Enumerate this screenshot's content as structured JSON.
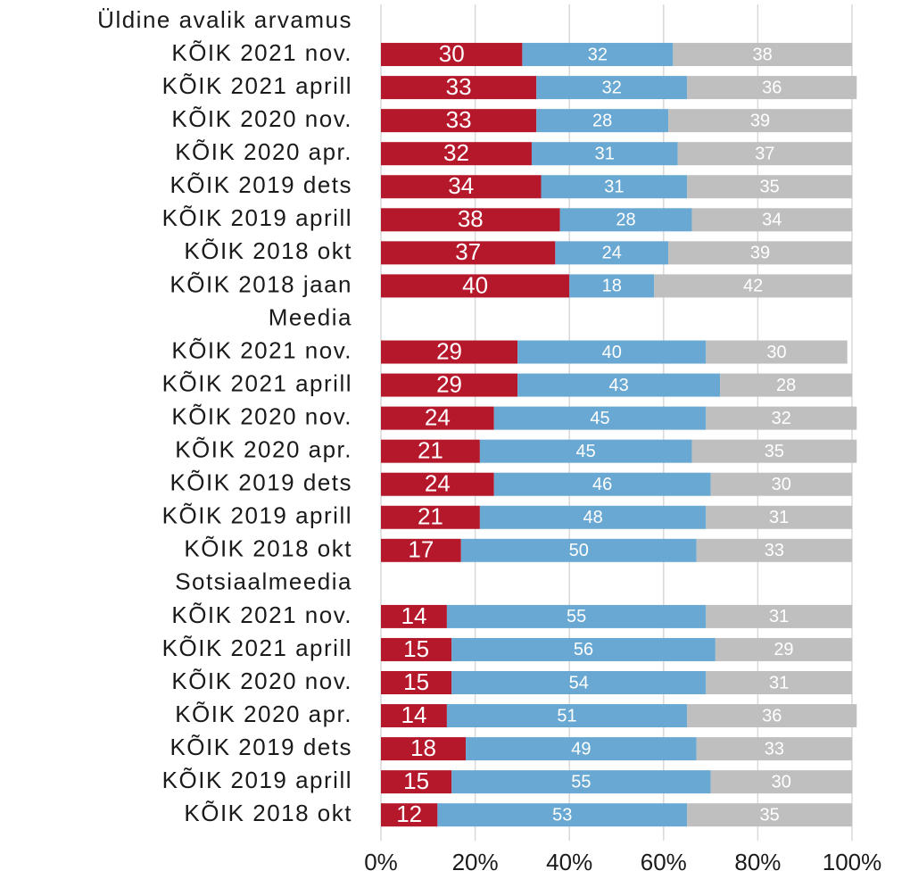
{
  "chart_data": {
    "type": "stacked_barh",
    "categories": [
      "Üldine avalik arvamus",
      "KÕIK 2021 nov.",
      "KÕIK 2021 aprill",
      "KÕIK 2020 nov.",
      "KÕIK 2020 apr.",
      "KÕIK 2019 dets",
      "KÕIK 2019 aprill",
      "KÕIK 2018 okt",
      "KÕIK 2018 jaan",
      "Meedia",
      "KÕIK 2021 nov.",
      "KÕIK 2021 aprill",
      "KÕIK 2020 nov.",
      "KÕIK 2020 apr.",
      "KÕIK 2019 dets",
      "KÕIK 2019 aprill",
      "KÕIK 2018 okt",
      "Sotsiaalmeedia",
      "KÕIK 2021 nov.",
      "KÕIK 2021 aprill",
      "KÕIK 2020 nov.",
      "KÕIK 2020 apr.",
      "KÕIK 2019 dets",
      "KÕIK 2019 aprill",
      "KÕIK 2018 okt"
    ],
    "series": [
      {
        "color": "#b5182b",
        "values": [
          null,
          30,
          33,
          33,
          32,
          34,
          38,
          37,
          40,
          null,
          29,
          29,
          24,
          21,
          24,
          21,
          17,
          null,
          14,
          15,
          15,
          14,
          18,
          15,
          12
        ]
      },
      {
        "color": "#68a8d2",
        "values": [
          null,
          32,
          32,
          28,
          31,
          31,
          28,
          24,
          18,
          null,
          40,
          43,
          45,
          45,
          46,
          48,
          50,
          null,
          55,
          56,
          54,
          51,
          49,
          55,
          53
        ]
      },
      {
        "color": "#bfbfbf",
        "values": [
          null,
          38,
          36,
          39,
          37,
          35,
          34,
          39,
          42,
          null,
          30,
          28,
          32,
          35,
          30,
          31,
          33,
          null,
          31,
          29,
          31,
          36,
          33,
          30,
          35
        ]
      }
    ],
    "xlim": [
      0,
      100
    ],
    "xticks": [
      {
        "value": 0,
        "label": "0%"
      },
      {
        "value": 20,
        "label": "20%"
      },
      {
        "value": 40,
        "label": "40%"
      },
      {
        "value": 60,
        "label": "60%"
      },
      {
        "value": 80,
        "label": "80%"
      },
      {
        "value": 100,
        "label": "100%"
      }
    ],
    "grid": true
  }
}
